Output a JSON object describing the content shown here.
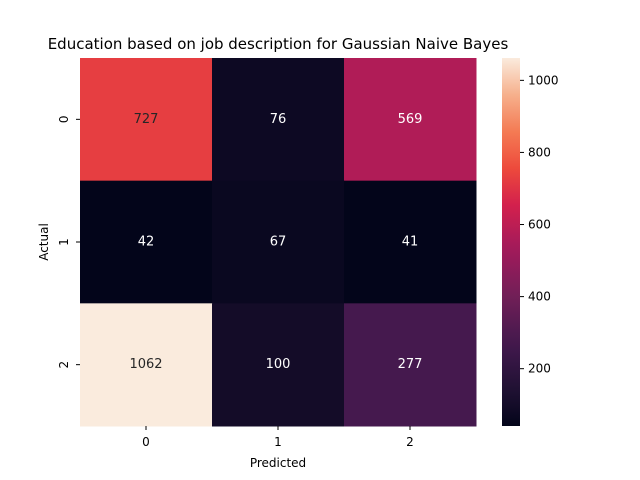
{
  "chart_data": {
    "type": "heatmap",
    "title": "Education based on job description for Gaussian Naive Bayes",
    "xlabel": "Predicted",
    "ylabel": "Actual",
    "x_categories": [
      "0",
      "1",
      "2"
    ],
    "y_categories": [
      "0",
      "1",
      "2"
    ],
    "values": [
      [
        727,
        76,
        569
      ],
      [
        42,
        67,
        41
      ],
      [
        1062,
        100,
        277
      ]
    ],
    "colorbar": {
      "min": 41,
      "max": 1062,
      "ticks": [
        200,
        400,
        600,
        800,
        1000
      ],
      "colormap": "rocket"
    }
  }
}
